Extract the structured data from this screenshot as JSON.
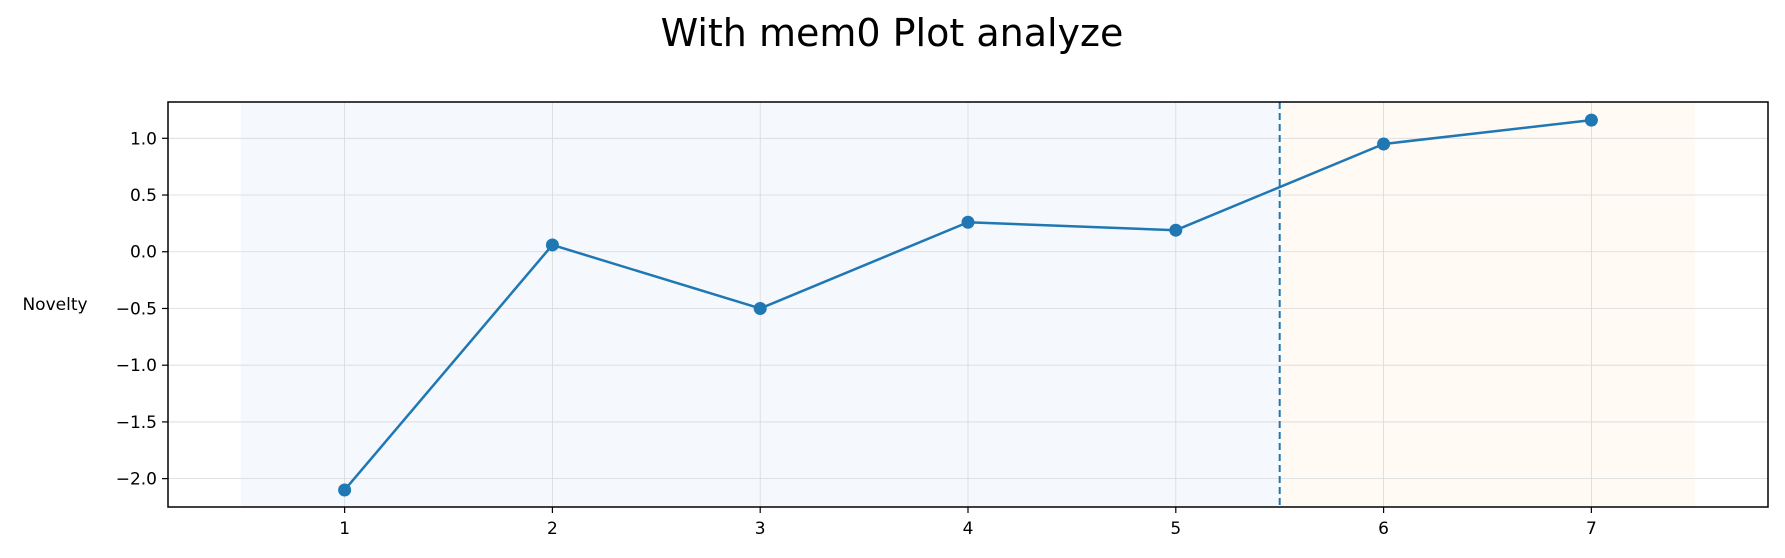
{
  "chart_data": {
    "type": "line",
    "title": "With mem0 Plot analyze",
    "xlabel": "",
    "ylabel": "Novelty",
    "x": [
      1,
      2,
      3,
      4,
      5,
      6,
      7
    ],
    "series": [
      {
        "values": [
          -2.1,
          0.06,
          -0.5,
          0.26,
          0.19,
          0.95,
          1.16
        ],
        "color": "#1f77b4"
      }
    ],
    "xlim": [
      0.15,
      7.85
    ],
    "ylim": [
      -2.25,
      1.32
    ],
    "xticks": [
      1,
      2,
      3,
      4,
      5,
      6,
      7
    ],
    "xtick_labels": [
      "1",
      "2",
      "3",
      "4",
      "5",
      "6",
      "7"
    ],
    "yticks": [
      1.0,
      0.5,
      0.0,
      -0.5,
      -1.0,
      -1.5,
      -2.0
    ],
    "ytick_labels": [
      "1.0",
      "0.5",
      "0.0",
      "−0.5",
      "−1.0",
      "−1.5",
      "−2.0"
    ],
    "grid": true,
    "regions": [
      {
        "x_start": 0.5,
        "x_end": 5.5,
        "color": "#f5f8fd"
      },
      {
        "x_start": 5.5,
        "x_end": 7.5,
        "color": "#fffaf3"
      }
    ],
    "vline": {
      "x": 5.5,
      "style": "dashed",
      "color": "#1f77b4"
    }
  }
}
